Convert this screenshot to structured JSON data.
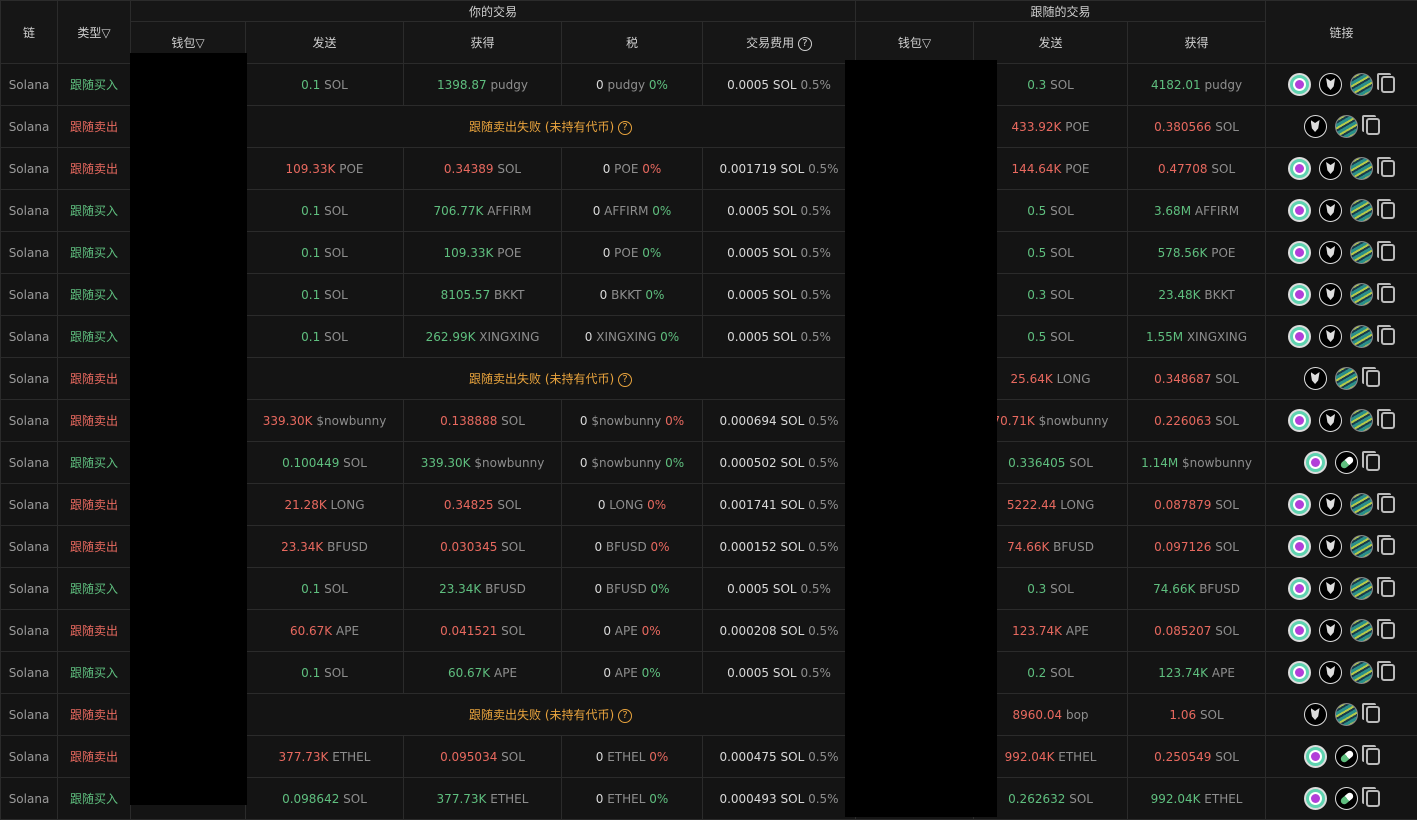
{
  "header": {
    "chain": "链",
    "type": "类型",
    "filter_icon": "funnel-icon",
    "your_trade": "你的交易",
    "followed_trade": "跟随的交易",
    "links": "链接",
    "your_cols": [
      "钱包",
      "发送",
      "获得",
      "税",
      "交易费用"
    ],
    "followed_cols": [
      "钱包",
      "发送",
      "获得"
    ]
  },
  "colors": {
    "buy": "#5fbf7f",
    "sell": "#e8695f",
    "fail": "#e8a33d"
  },
  "fail_text": "跟随卖出失败 (未持有代币)",
  "rows": [
    {
      "chain": "Solana",
      "type": "跟随买入",
      "side": "buy",
      "send": [
        "0.1",
        "SOL"
      ],
      "get": [
        "1398.87",
        "pudgy"
      ],
      "tax": [
        "0",
        "pudgy",
        "0%"
      ],
      "fee": [
        "0.0005 SOL",
        "0.5%"
      ],
      "fsend": [
        "0.3",
        "SOL"
      ],
      "fget": [
        "4182.01",
        "pudgy"
      ],
      "links": "A"
    },
    {
      "chain": "Solana",
      "type": "跟随卖出",
      "side": "sell",
      "failed": true,
      "fsend": [
        "433.92K",
        "POE"
      ],
      "fget": [
        "0.380566",
        "SOL"
      ],
      "links": "B"
    },
    {
      "chain": "Solana",
      "type": "跟随卖出",
      "side": "sell",
      "send": [
        "109.33K",
        "POE"
      ],
      "get": [
        "0.34389",
        "SOL"
      ],
      "tax": [
        "0",
        "POE",
        "0%"
      ],
      "fee": [
        "0.001719 SOL",
        "0.5%"
      ],
      "fsend": [
        "144.64K",
        "POE"
      ],
      "fget": [
        "0.47708",
        "SOL"
      ],
      "links": "A"
    },
    {
      "chain": "Solana",
      "type": "跟随买入",
      "side": "buy",
      "send": [
        "0.1",
        "SOL"
      ],
      "get": [
        "706.77K",
        "AFFIRM"
      ],
      "tax": [
        "0",
        "AFFIRM",
        "0%"
      ],
      "fee": [
        "0.0005 SOL",
        "0.5%"
      ],
      "fsend": [
        "0.5",
        "SOL"
      ],
      "fget": [
        "3.68M",
        "AFFIRM"
      ],
      "links": "A"
    },
    {
      "chain": "Solana",
      "type": "跟随买入",
      "side": "buy",
      "send": [
        "0.1",
        "SOL"
      ],
      "get": [
        "109.33K",
        "POE"
      ],
      "tax": [
        "0",
        "POE",
        "0%"
      ],
      "fee": [
        "0.0005 SOL",
        "0.5%"
      ],
      "fsend": [
        "0.5",
        "SOL"
      ],
      "fget": [
        "578.56K",
        "POE"
      ],
      "links": "A"
    },
    {
      "chain": "Solana",
      "type": "跟随买入",
      "side": "buy",
      "send": [
        "0.1",
        "SOL"
      ],
      "get": [
        "8105.57",
        "BKKT"
      ],
      "tax": [
        "0",
        "BKKT",
        "0%"
      ],
      "fee": [
        "0.0005 SOL",
        "0.5%"
      ],
      "fsend": [
        "0.3",
        "SOL"
      ],
      "fget": [
        "23.48K",
        "BKKT"
      ],
      "links": "A"
    },
    {
      "chain": "Solana",
      "type": "跟随买入",
      "side": "buy",
      "send": [
        "0.1",
        "SOL"
      ],
      "get": [
        "262.99K",
        "XINGXING"
      ],
      "tax": [
        "0",
        "XINGXING",
        "0%"
      ],
      "fee": [
        "0.0005 SOL",
        "0.5%"
      ],
      "fsend": [
        "0.5",
        "SOL"
      ],
      "fget": [
        "1.55M",
        "XINGXING"
      ],
      "links": "A"
    },
    {
      "chain": "Solana",
      "type": "跟随卖出",
      "side": "sell",
      "failed": true,
      "fsend": [
        "25.64K",
        "LONG"
      ],
      "fget": [
        "0.348687",
        "SOL"
      ],
      "links": "B"
    },
    {
      "chain": "Solana",
      "type": "跟随卖出",
      "side": "sell",
      "send": [
        "339.30K",
        "$nowbunny"
      ],
      "get": [
        "0.138888",
        "SOL"
      ],
      "tax": [
        "0",
        "$nowbunny",
        "0%"
      ],
      "fee": [
        "0.000694 SOL",
        "0.5%"
      ],
      "fsend": [
        "70.71K",
        "$nowbunny"
      ],
      "fget": [
        "0.226063",
        "SOL"
      ],
      "links": "A"
    },
    {
      "chain": "Solana",
      "type": "跟随买入",
      "side": "buy",
      "send": [
        "0.100449",
        "SOL"
      ],
      "get": [
        "339.30K",
        "$nowbunny"
      ],
      "tax": [
        "0",
        "$nowbunny",
        "0%"
      ],
      "fee": [
        "0.000502 SOL",
        "0.5%"
      ],
      "fsend": [
        "0.336405",
        "SOL"
      ],
      "fget": [
        "1.14M",
        "$nowbunny"
      ],
      "links": "C"
    },
    {
      "chain": "Solana",
      "type": "跟随卖出",
      "side": "sell",
      "send": [
        "21.28K",
        "LONG"
      ],
      "get": [
        "0.34825",
        "SOL"
      ],
      "tax": [
        "0",
        "LONG",
        "0%"
      ],
      "fee": [
        "0.001741 SOL",
        "0.5%"
      ],
      "fsend": [
        "5222.44",
        "LONG"
      ],
      "fget": [
        "0.087879",
        "SOL"
      ],
      "links": "A"
    },
    {
      "chain": "Solana",
      "type": "跟随卖出",
      "side": "sell",
      "send": [
        "23.34K",
        "BFUSD"
      ],
      "get": [
        "0.030345",
        "SOL"
      ],
      "tax": [
        "0",
        "BFUSD",
        "0%"
      ],
      "fee": [
        "0.000152 SOL",
        "0.5%"
      ],
      "fsend": [
        "74.66K",
        "BFUSD"
      ],
      "fget": [
        "0.097126",
        "SOL"
      ],
      "links": "A"
    },
    {
      "chain": "Solana",
      "type": "跟随买入",
      "side": "buy",
      "send": [
        "0.1",
        "SOL"
      ],
      "get": [
        "23.34K",
        "BFUSD"
      ],
      "tax": [
        "0",
        "BFUSD",
        "0%"
      ],
      "fee": [
        "0.0005 SOL",
        "0.5%"
      ],
      "fsend": [
        "0.3",
        "SOL"
      ],
      "fget": [
        "74.66K",
        "BFUSD"
      ],
      "links": "A"
    },
    {
      "chain": "Solana",
      "type": "跟随卖出",
      "side": "sell",
      "send": [
        "60.67K",
        "APE"
      ],
      "get": [
        "0.041521",
        "SOL"
      ],
      "tax": [
        "0",
        "APE",
        "0%"
      ],
      "fee": [
        "0.000208 SOL",
        "0.5%"
      ],
      "fsend": [
        "123.74K",
        "APE"
      ],
      "fget": [
        "0.085207",
        "SOL"
      ],
      "links": "A"
    },
    {
      "chain": "Solana",
      "type": "跟随买入",
      "side": "buy",
      "send": [
        "0.1",
        "SOL"
      ],
      "get": [
        "60.67K",
        "APE"
      ],
      "tax": [
        "0",
        "APE",
        "0%"
      ],
      "fee": [
        "0.0005 SOL",
        "0.5%"
      ],
      "fsend": [
        "0.2",
        "SOL"
      ],
      "fget": [
        "123.74K",
        "APE"
      ],
      "links": "A"
    },
    {
      "chain": "Solana",
      "type": "跟随卖出",
      "side": "sell",
      "failed": true,
      "fsend": [
        "8960.04",
        "bop"
      ],
      "fget": [
        "1.06",
        "SOL"
      ],
      "links": "B"
    },
    {
      "chain": "Solana",
      "type": "跟随卖出",
      "side": "sell",
      "send": [
        "377.73K",
        "ETHEL"
      ],
      "get": [
        "0.095034",
        "SOL"
      ],
      "tax": [
        "0",
        "ETHEL",
        "0%"
      ],
      "fee": [
        "0.000475 SOL",
        "0.5%"
      ],
      "fsend": [
        "992.04K",
        "ETHEL"
      ],
      "fget": [
        "0.250549",
        "SOL"
      ],
      "links": "C"
    },
    {
      "chain": "Solana",
      "type": "跟随买入",
      "side": "buy",
      "send": [
        "0.098642",
        "SOL"
      ],
      "get": [
        "377.73K",
        "ETHEL"
      ],
      "tax": [
        "0",
        "ETHEL",
        "0%"
      ],
      "fee": [
        "0.000493 SOL",
        "0.5%"
      ],
      "fsend": [
        "0.262632",
        "SOL"
      ],
      "fget": [
        "992.04K",
        "ETHEL"
      ],
      "links": "C"
    }
  ]
}
